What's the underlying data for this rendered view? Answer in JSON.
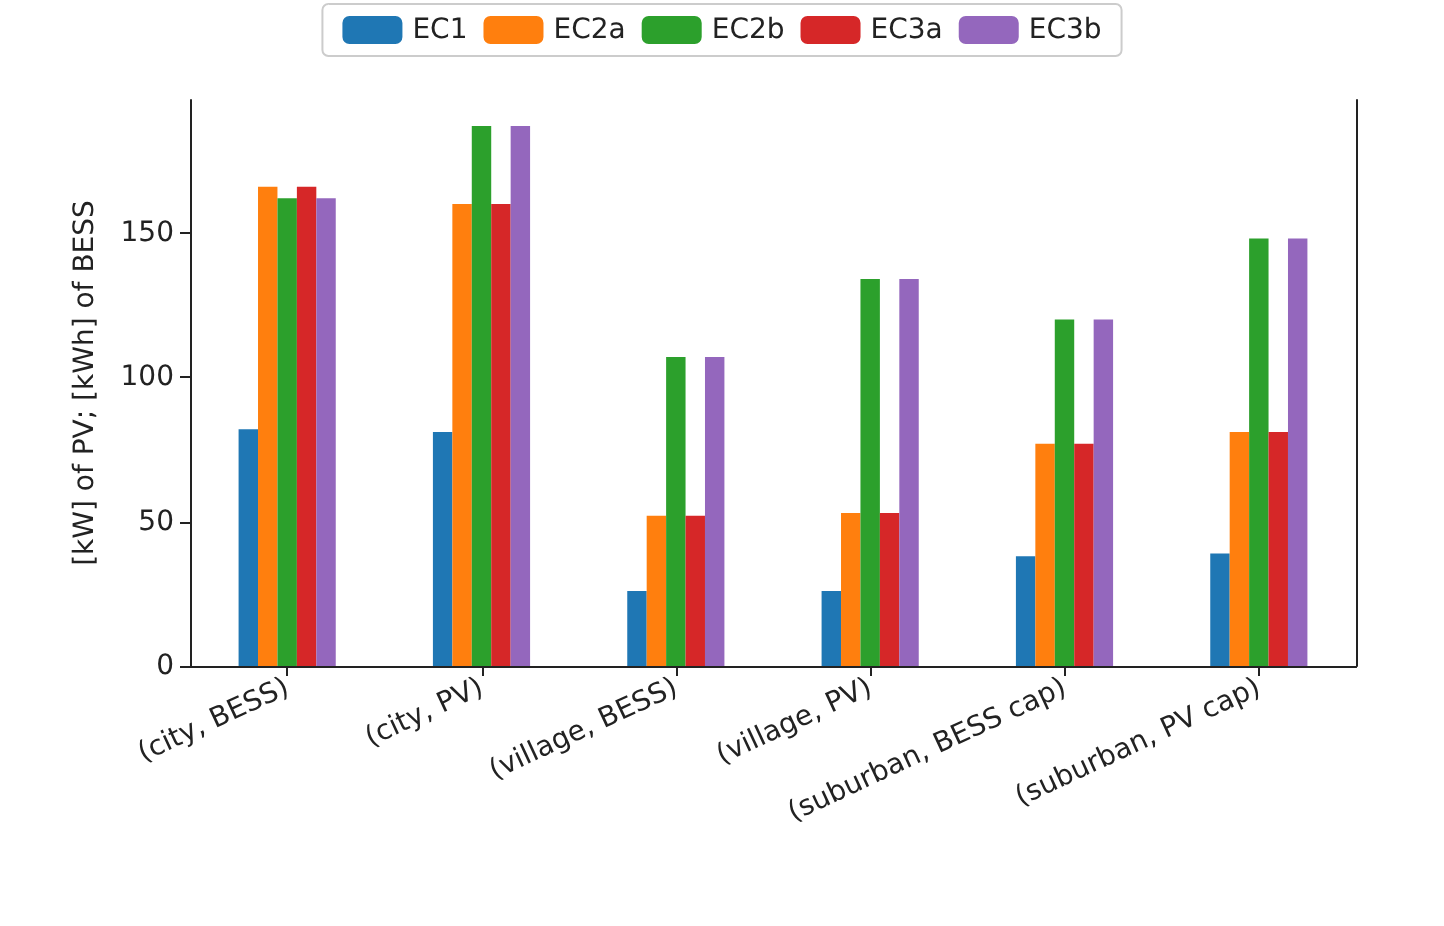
{
  "chart_data": {
    "type": "bar",
    "ylabel": "[kW] of PV; [kWh] of BESS",
    "categories": [
      "(city, BESS)",
      "(city, PV)",
      "(village, BESS)",
      "(village, PV)",
      "(suburban, BESS cap)",
      "(suburban, PV cap)"
    ],
    "series": [
      {
        "name": "EC1",
        "color": "#1f77b4",
        "values": [
          82,
          81,
          26,
          26,
          38,
          39
        ]
      },
      {
        "name": "EC2a",
        "color": "#ff7f0e",
        "values": [
          166,
          160,
          52,
          53,
          77,
          81
        ]
      },
      {
        "name": "EC2b",
        "color": "#2ca02c",
        "values": [
          162,
          187,
          107,
          134,
          120,
          148
        ]
      },
      {
        "name": "EC3a",
        "color": "#d62728",
        "values": [
          166,
          160,
          52,
          53,
          77,
          81
        ]
      },
      {
        "name": "EC3b",
        "color": "#9467bd",
        "values": [
          162,
          187,
          107,
          134,
          120,
          148
        ]
      }
    ],
    "ylim": [
      0,
      196
    ],
    "yticks": [
      0,
      50,
      100,
      150
    ],
    "grid": false,
    "legend": "top"
  }
}
